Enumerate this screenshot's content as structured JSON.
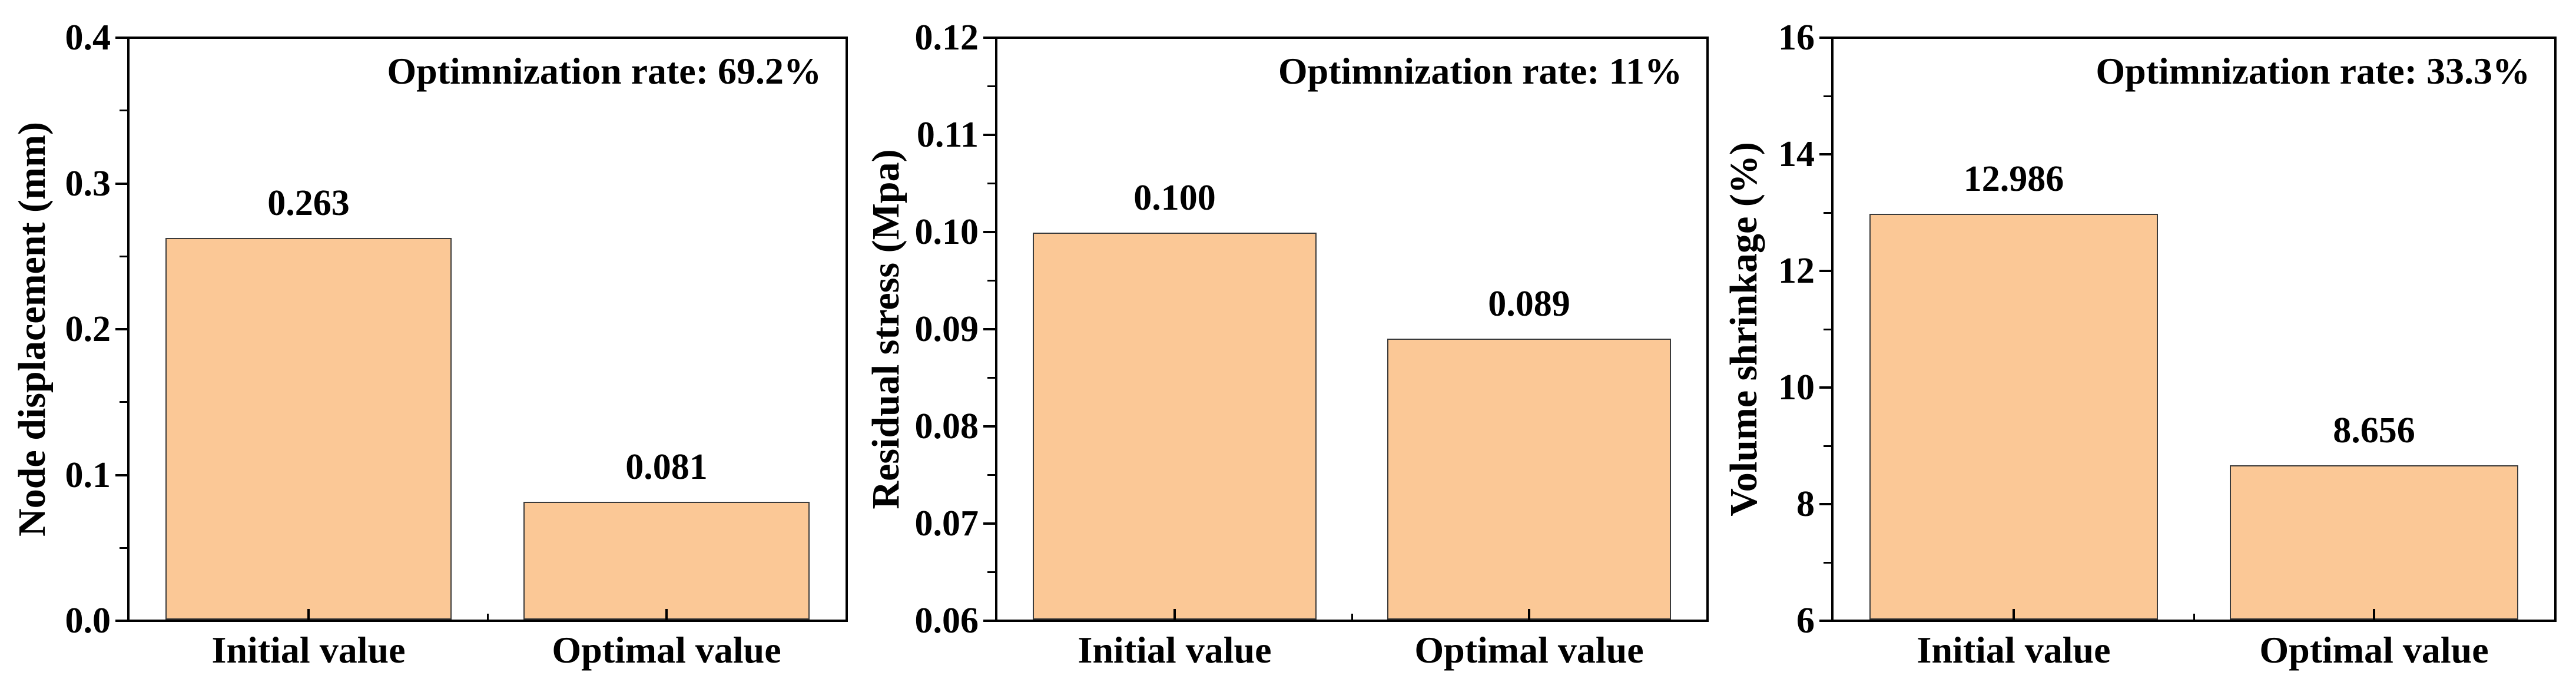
{
  "figure": {
    "background": "#FFFFFF"
  },
  "colors": {
    "bar_fill": "#FBC896",
    "bar_border": "#3A3A3A",
    "axis": "#000000",
    "text": "#000000"
  },
  "chart_data": [
    {
      "id": "node-displacement",
      "type": "bar",
      "title": "",
      "ylabel": "Node displacement (mm)",
      "xlabel": "",
      "annotation": "Optimnization rate: 69.2%",
      "categories": [
        "Initial value",
        "Optimal value"
      ],
      "values": [
        0.263,
        0.081
      ],
      "value_labels": [
        "0.263",
        "0.081"
      ],
      "ylim": [
        0.0,
        0.4
      ],
      "ytick_labels": [
        "0.0",
        "0.1",
        "0.2",
        "0.3",
        "0.4"
      ],
      "minor_ticks_between_majors": true,
      "grid": false,
      "legend": false
    },
    {
      "id": "residual-stress",
      "type": "bar",
      "title": "",
      "ylabel": "Residual stress (Mpa)",
      "xlabel": "",
      "annotation": "Optimnization rate: 11%",
      "categories": [
        "Initial value",
        "Optimal value"
      ],
      "values": [
        0.1,
        0.089
      ],
      "value_labels": [
        "0.100",
        "0.089"
      ],
      "ylim": [
        0.06,
        0.12
      ],
      "ytick_labels": [
        "0.06",
        "0.07",
        "0.08",
        "0.09",
        "0.10",
        "0.11",
        "0.12"
      ],
      "minor_ticks_between_majors": true,
      "grid": false,
      "legend": false
    },
    {
      "id": "volume-shrinkage",
      "type": "bar",
      "title": "",
      "ylabel": "Volume shrinkage (%)",
      "xlabel": "",
      "annotation": "Optimnization rate: 33.3%",
      "categories": [
        "Initial value",
        "Optimal value"
      ],
      "values": [
        12.986,
        8.656
      ],
      "value_labels": [
        "12.986",
        "8.656"
      ],
      "ylim": [
        6,
        16
      ],
      "ytick_labels": [
        "6",
        "8",
        "10",
        "12",
        "14",
        "16"
      ],
      "minor_ticks_between_majors": true,
      "grid": false,
      "legend": false
    }
  ]
}
